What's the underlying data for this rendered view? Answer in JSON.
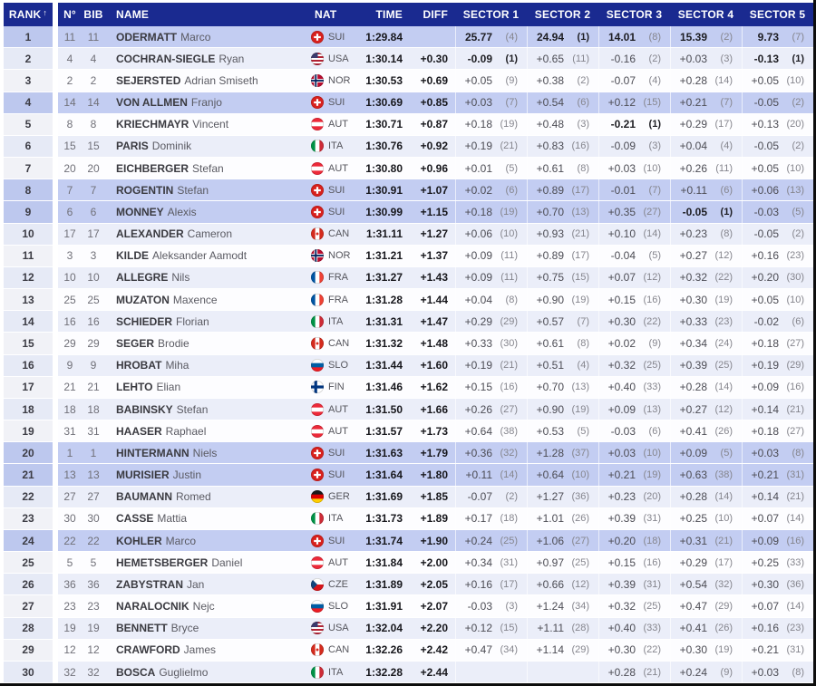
{
  "table": {
    "headers": {
      "rank": "RANK",
      "sort_icon": "↑",
      "n": "N°",
      "bib": "BIB",
      "name": "NAME",
      "nat": "NAT",
      "time": "TIME",
      "diff": "DIFF",
      "sectors": [
        "SECTOR 1",
        "SECTOR 2",
        "SECTOR 3",
        "SECTOR 4",
        "SECTOR 5"
      ]
    },
    "colors": {
      "header_bg": "#1a2a90",
      "header_text": "#ffffff",
      "highlight_row": "#c3cdf2",
      "even_row": "#ebeef9",
      "odd_row": "#fdfdff",
      "border_dark": "#0d0d0d"
    },
    "rows": [
      {
        "rank": "1",
        "n": "11",
        "bib": "11",
        "last": "ODERMATT",
        "first": "Marco",
        "nat": "SUI",
        "time": "1:29.84",
        "diff": "",
        "highlight": true,
        "leader": true,
        "sectors": [
          {
            "v": "25.77",
            "r": "(4)"
          },
          {
            "v": "24.94",
            "r": "(1)"
          },
          {
            "v": "14.01",
            "r": "(8)"
          },
          {
            "v": "15.39",
            "r": "(2)"
          },
          {
            "v": "9.73",
            "r": "(7)"
          }
        ]
      },
      {
        "rank": "2",
        "n": "4",
        "bib": "4",
        "last": "COCHRAN-SIEGLE",
        "first": "Ryan",
        "nat": "USA",
        "time": "1:30.14",
        "diff": "+0.30",
        "highlight": false,
        "sectors": [
          {
            "v": "-0.09",
            "r": "(1)"
          },
          {
            "v": "+0.65",
            "r": "(11)"
          },
          {
            "v": "-0.16",
            "r": "(2)"
          },
          {
            "v": "+0.03",
            "r": "(3)"
          },
          {
            "v": "-0.13",
            "r": "(1)"
          }
        ]
      },
      {
        "rank": "3",
        "n": "2",
        "bib": "2",
        "last": "SEJERSTED",
        "first": "Adrian Smiseth",
        "nat": "NOR",
        "time": "1:30.53",
        "diff": "+0.69",
        "highlight": false,
        "sectors": [
          {
            "v": "+0.05",
            "r": "(9)"
          },
          {
            "v": "+0.38",
            "r": "(2)"
          },
          {
            "v": "-0.07",
            "r": "(4)"
          },
          {
            "v": "+0.28",
            "r": "(14)"
          },
          {
            "v": "+0.05",
            "r": "(10)"
          }
        ]
      },
      {
        "rank": "4",
        "n": "14",
        "bib": "14",
        "last": "VON ALLMEN",
        "first": "Franjo",
        "nat": "SUI",
        "time": "1:30.69",
        "diff": "+0.85",
        "highlight": true,
        "sectors": [
          {
            "v": "+0.03",
            "r": "(7)"
          },
          {
            "v": "+0.54",
            "r": "(6)"
          },
          {
            "v": "+0.12",
            "r": "(15)"
          },
          {
            "v": "+0.21",
            "r": "(7)"
          },
          {
            "v": "-0.05",
            "r": "(2)"
          }
        ]
      },
      {
        "rank": "5",
        "n": "8",
        "bib": "8",
        "last": "KRIECHMAYR",
        "first": "Vincent",
        "nat": "AUT",
        "time": "1:30.71",
        "diff": "+0.87",
        "highlight": false,
        "sectors": [
          {
            "v": "+0.18",
            "r": "(19)"
          },
          {
            "v": "+0.48",
            "r": "(3)"
          },
          {
            "v": "-0.21",
            "r": "(1)"
          },
          {
            "v": "+0.29",
            "r": "(17)"
          },
          {
            "v": "+0.13",
            "r": "(20)"
          }
        ]
      },
      {
        "rank": "6",
        "n": "15",
        "bib": "15",
        "last": "PARIS",
        "first": "Dominik",
        "nat": "ITA",
        "time": "1:30.76",
        "diff": "+0.92",
        "highlight": false,
        "sectors": [
          {
            "v": "+0.19",
            "r": "(21)"
          },
          {
            "v": "+0.83",
            "r": "(16)"
          },
          {
            "v": "-0.09",
            "r": "(3)"
          },
          {
            "v": "+0.04",
            "r": "(4)"
          },
          {
            "v": "-0.05",
            "r": "(2)"
          }
        ]
      },
      {
        "rank": "7",
        "n": "20",
        "bib": "20",
        "last": "EICHBERGER",
        "first": "Stefan",
        "nat": "AUT",
        "time": "1:30.80",
        "diff": "+0.96",
        "highlight": false,
        "sectors": [
          {
            "v": "+0.01",
            "r": "(5)"
          },
          {
            "v": "+0.61",
            "r": "(8)"
          },
          {
            "v": "+0.03",
            "r": "(10)"
          },
          {
            "v": "+0.26",
            "r": "(11)"
          },
          {
            "v": "+0.05",
            "r": "(10)"
          }
        ]
      },
      {
        "rank": "8",
        "n": "7",
        "bib": "7",
        "last": "ROGENTIN",
        "first": "Stefan",
        "nat": "SUI",
        "time": "1:30.91",
        "diff": "+1.07",
        "highlight": true,
        "sectors": [
          {
            "v": "+0.02",
            "r": "(6)"
          },
          {
            "v": "+0.89",
            "r": "(17)"
          },
          {
            "v": "-0.01",
            "r": "(7)"
          },
          {
            "v": "+0.11",
            "r": "(6)"
          },
          {
            "v": "+0.06",
            "r": "(13)"
          }
        ]
      },
      {
        "rank": "9",
        "n": "6",
        "bib": "6",
        "last": "MONNEY",
        "first": "Alexis",
        "nat": "SUI",
        "time": "1:30.99",
        "diff": "+1.15",
        "highlight": true,
        "sectors": [
          {
            "v": "+0.18",
            "r": "(19)"
          },
          {
            "v": "+0.70",
            "r": "(13)"
          },
          {
            "v": "+0.35",
            "r": "(27)"
          },
          {
            "v": "-0.05",
            "r": "(1)"
          },
          {
            "v": "-0.03",
            "r": "(5)"
          }
        ]
      },
      {
        "rank": "10",
        "n": "17",
        "bib": "17",
        "last": "ALEXANDER",
        "first": "Cameron",
        "nat": "CAN",
        "time": "1:31.11",
        "diff": "+1.27",
        "highlight": false,
        "sectors": [
          {
            "v": "+0.06",
            "r": "(10)"
          },
          {
            "v": "+0.93",
            "r": "(21)"
          },
          {
            "v": "+0.10",
            "r": "(14)"
          },
          {
            "v": "+0.23",
            "r": "(8)"
          },
          {
            "v": "-0.05",
            "r": "(2)"
          }
        ]
      },
      {
        "rank": "11",
        "n": "3",
        "bib": "3",
        "last": "KILDE",
        "first": "Aleksander Aamodt",
        "nat": "NOR",
        "time": "1:31.21",
        "diff": "+1.37",
        "highlight": false,
        "sectors": [
          {
            "v": "+0.09",
            "r": "(11)"
          },
          {
            "v": "+0.89",
            "r": "(17)"
          },
          {
            "v": "-0.04",
            "r": "(5)"
          },
          {
            "v": "+0.27",
            "r": "(12)"
          },
          {
            "v": "+0.16",
            "r": "(23)"
          }
        ]
      },
      {
        "rank": "12",
        "n": "10",
        "bib": "10",
        "last": "ALLEGRE",
        "first": "Nils",
        "nat": "FRA",
        "time": "1:31.27",
        "diff": "+1.43",
        "highlight": false,
        "sectors": [
          {
            "v": "+0.09",
            "r": "(11)"
          },
          {
            "v": "+0.75",
            "r": "(15)"
          },
          {
            "v": "+0.07",
            "r": "(12)"
          },
          {
            "v": "+0.32",
            "r": "(22)"
          },
          {
            "v": "+0.20",
            "r": "(30)"
          }
        ]
      },
      {
        "rank": "13",
        "n": "25",
        "bib": "25",
        "last": "MUZATON",
        "first": "Maxence",
        "nat": "FRA",
        "time": "1:31.28",
        "diff": "+1.44",
        "highlight": false,
        "sectors": [
          {
            "v": "+0.04",
            "r": "(8)"
          },
          {
            "v": "+0.90",
            "r": "(19)"
          },
          {
            "v": "+0.15",
            "r": "(16)"
          },
          {
            "v": "+0.30",
            "r": "(19)"
          },
          {
            "v": "+0.05",
            "r": "(10)"
          }
        ]
      },
      {
        "rank": "14",
        "n": "16",
        "bib": "16",
        "last": "SCHIEDER",
        "first": "Florian",
        "nat": "ITA",
        "time": "1:31.31",
        "diff": "+1.47",
        "highlight": false,
        "sectors": [
          {
            "v": "+0.29",
            "r": "(29)"
          },
          {
            "v": "+0.57",
            "r": "(7)"
          },
          {
            "v": "+0.30",
            "r": "(22)"
          },
          {
            "v": "+0.33",
            "r": "(23)"
          },
          {
            "v": "-0.02",
            "r": "(6)"
          }
        ]
      },
      {
        "rank": "15",
        "n": "29",
        "bib": "29",
        "last": "SEGER",
        "first": "Brodie",
        "nat": "CAN",
        "time": "1:31.32",
        "diff": "+1.48",
        "highlight": false,
        "sectors": [
          {
            "v": "+0.33",
            "r": "(30)"
          },
          {
            "v": "+0.61",
            "r": "(8)"
          },
          {
            "v": "+0.02",
            "r": "(9)"
          },
          {
            "v": "+0.34",
            "r": "(24)"
          },
          {
            "v": "+0.18",
            "r": "(27)"
          }
        ]
      },
      {
        "rank": "16",
        "n": "9",
        "bib": "9",
        "last": "HROBAT",
        "first": "Miha",
        "nat": "SLO",
        "time": "1:31.44",
        "diff": "+1.60",
        "highlight": false,
        "sectors": [
          {
            "v": "+0.19",
            "r": "(21)"
          },
          {
            "v": "+0.51",
            "r": "(4)"
          },
          {
            "v": "+0.32",
            "r": "(25)"
          },
          {
            "v": "+0.39",
            "r": "(25)"
          },
          {
            "v": "+0.19",
            "r": "(29)"
          }
        ]
      },
      {
        "rank": "17",
        "n": "21",
        "bib": "21",
        "last": "LEHTO",
        "first": "Elian",
        "nat": "FIN",
        "time": "1:31.46",
        "diff": "+1.62",
        "highlight": false,
        "sectors": [
          {
            "v": "+0.15",
            "r": "(16)"
          },
          {
            "v": "+0.70",
            "r": "(13)"
          },
          {
            "v": "+0.40",
            "r": "(33)"
          },
          {
            "v": "+0.28",
            "r": "(14)"
          },
          {
            "v": "+0.09",
            "r": "(16)"
          }
        ]
      },
      {
        "rank": "18",
        "n": "18",
        "bib": "18",
        "last": "BABINSKY",
        "first": "Stefan",
        "nat": "AUT",
        "time": "1:31.50",
        "diff": "+1.66",
        "highlight": false,
        "sectors": [
          {
            "v": "+0.26",
            "r": "(27)"
          },
          {
            "v": "+0.90",
            "r": "(19)"
          },
          {
            "v": "+0.09",
            "r": "(13)"
          },
          {
            "v": "+0.27",
            "r": "(12)"
          },
          {
            "v": "+0.14",
            "r": "(21)"
          }
        ]
      },
      {
        "rank": "19",
        "n": "31",
        "bib": "31",
        "last": "HAASER",
        "first": "Raphael",
        "nat": "AUT",
        "time": "1:31.57",
        "diff": "+1.73",
        "highlight": false,
        "sectors": [
          {
            "v": "+0.64",
            "r": "(38)"
          },
          {
            "v": "+0.53",
            "r": "(5)"
          },
          {
            "v": "-0.03",
            "r": "(6)"
          },
          {
            "v": "+0.41",
            "r": "(26)"
          },
          {
            "v": "+0.18",
            "r": "(27)"
          }
        ]
      },
      {
        "rank": "20",
        "n": "1",
        "bib": "1",
        "last": "HINTERMANN",
        "first": "Niels",
        "nat": "SUI",
        "time": "1:31.63",
        "diff": "+1.79",
        "highlight": true,
        "sectors": [
          {
            "v": "+0.36",
            "r": "(32)"
          },
          {
            "v": "+1.28",
            "r": "(37)"
          },
          {
            "v": "+0.03",
            "r": "(10)"
          },
          {
            "v": "+0.09",
            "r": "(5)"
          },
          {
            "v": "+0.03",
            "r": "(8)"
          }
        ]
      },
      {
        "rank": "21",
        "n": "13",
        "bib": "13",
        "last": "MURISIER",
        "first": "Justin",
        "nat": "SUI",
        "time": "1:31.64",
        "diff": "+1.80",
        "highlight": true,
        "sectors": [
          {
            "v": "+0.11",
            "r": "(14)"
          },
          {
            "v": "+0.64",
            "r": "(10)"
          },
          {
            "v": "+0.21",
            "r": "(19)"
          },
          {
            "v": "+0.63",
            "r": "(38)"
          },
          {
            "v": "+0.21",
            "r": "(31)"
          }
        ]
      },
      {
        "rank": "22",
        "n": "27",
        "bib": "27",
        "last": "BAUMANN",
        "first": "Romed",
        "nat": "GER",
        "time": "1:31.69",
        "diff": "+1.85",
        "highlight": false,
        "sectors": [
          {
            "v": "-0.07",
            "r": "(2)"
          },
          {
            "v": "+1.27",
            "r": "(36)"
          },
          {
            "v": "+0.23",
            "r": "(20)"
          },
          {
            "v": "+0.28",
            "r": "(14)"
          },
          {
            "v": "+0.14",
            "r": "(21)"
          }
        ]
      },
      {
        "rank": "23",
        "n": "30",
        "bib": "30",
        "last": "CASSE",
        "first": "Mattia",
        "nat": "ITA",
        "time": "1:31.73",
        "diff": "+1.89",
        "highlight": false,
        "sectors": [
          {
            "v": "+0.17",
            "r": "(18)"
          },
          {
            "v": "+1.01",
            "r": "(26)"
          },
          {
            "v": "+0.39",
            "r": "(31)"
          },
          {
            "v": "+0.25",
            "r": "(10)"
          },
          {
            "v": "+0.07",
            "r": "(14)"
          }
        ]
      },
      {
        "rank": "24",
        "n": "22",
        "bib": "22",
        "last": "KOHLER",
        "first": "Marco",
        "nat": "SUI",
        "time": "1:31.74",
        "diff": "+1.90",
        "highlight": true,
        "sectors": [
          {
            "v": "+0.24",
            "r": "(25)"
          },
          {
            "v": "+1.06",
            "r": "(27)"
          },
          {
            "v": "+0.20",
            "r": "(18)"
          },
          {
            "v": "+0.31",
            "r": "(21)"
          },
          {
            "v": "+0.09",
            "r": "(16)"
          }
        ]
      },
      {
        "rank": "25",
        "n": "5",
        "bib": "5",
        "last": "HEMETSBERGER",
        "first": "Daniel",
        "nat": "AUT",
        "time": "1:31.84",
        "diff": "+2.00",
        "highlight": false,
        "sectors": [
          {
            "v": "+0.34",
            "r": "(31)"
          },
          {
            "v": "+0.97",
            "r": "(25)"
          },
          {
            "v": "+0.15",
            "r": "(16)"
          },
          {
            "v": "+0.29",
            "r": "(17)"
          },
          {
            "v": "+0.25",
            "r": "(33)"
          }
        ]
      },
      {
        "rank": "26",
        "n": "36",
        "bib": "36",
        "last": "ZABYSTRAN",
        "first": "Jan",
        "nat": "CZE",
        "time": "1:31.89",
        "diff": "+2.05",
        "highlight": false,
        "sectors": [
          {
            "v": "+0.16",
            "r": "(17)"
          },
          {
            "v": "+0.66",
            "r": "(12)"
          },
          {
            "v": "+0.39",
            "r": "(31)"
          },
          {
            "v": "+0.54",
            "r": "(32)"
          },
          {
            "v": "+0.30",
            "r": "(36)"
          }
        ]
      },
      {
        "rank": "27",
        "n": "23",
        "bib": "23",
        "last": "NARALOCNIK",
        "first": "Nejc",
        "nat": "SLO",
        "time": "1:31.91",
        "diff": "+2.07",
        "highlight": false,
        "sectors": [
          {
            "v": "-0.03",
            "r": "(3)"
          },
          {
            "v": "+1.24",
            "r": "(34)"
          },
          {
            "v": "+0.32",
            "r": "(25)"
          },
          {
            "v": "+0.47",
            "r": "(29)"
          },
          {
            "v": "+0.07",
            "r": "(14)"
          }
        ]
      },
      {
        "rank": "28",
        "n": "19",
        "bib": "19",
        "last": "BENNETT",
        "first": "Bryce",
        "nat": "USA",
        "time": "1:32.04",
        "diff": "+2.20",
        "highlight": false,
        "sectors": [
          {
            "v": "+0.12",
            "r": "(15)"
          },
          {
            "v": "+1.11",
            "r": "(28)"
          },
          {
            "v": "+0.40",
            "r": "(33)"
          },
          {
            "v": "+0.41",
            "r": "(26)"
          },
          {
            "v": "+0.16",
            "r": "(23)"
          }
        ]
      },
      {
        "rank": "29",
        "n": "12",
        "bib": "12",
        "last": "CRAWFORD",
        "first": "James",
        "nat": "CAN",
        "time": "1:32.26",
        "diff": "+2.42",
        "highlight": false,
        "sectors": [
          {
            "v": "+0.47",
            "r": "(34)"
          },
          {
            "v": "+1.14",
            "r": "(29)"
          },
          {
            "v": "+0.30",
            "r": "(22)"
          },
          {
            "v": "+0.30",
            "r": "(19)"
          },
          {
            "v": "+0.21",
            "r": "(31)"
          }
        ]
      },
      {
        "rank": "30",
        "n": "32",
        "bib": "32",
        "last": "BOSCA",
        "first": "Guglielmo",
        "nat": "ITA",
        "time": "1:32.28",
        "diff": "+2.44",
        "highlight": false,
        "sectors": [
          null,
          null,
          {
            "v": "+0.28",
            "r": "(21)"
          },
          {
            "v": "+0.24",
            "r": "(9)"
          },
          {
            "v": "+0.03",
            "r": "(8)"
          }
        ]
      }
    ]
  }
}
